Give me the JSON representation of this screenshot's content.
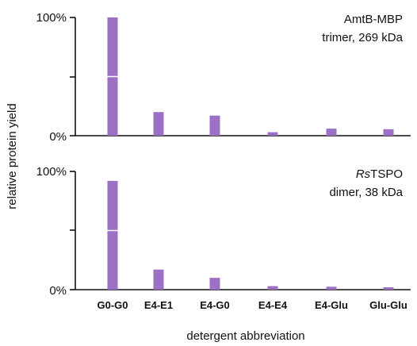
{
  "chart_data": {
    "type": "bar",
    "ylabel": "relative protein yield",
    "xlabel": "detergent abbreviation",
    "categories": [
      "G0-G0",
      "E4-E1",
      "E4-G0",
      "E4-E4",
      "E4-Glu",
      "Glu-Glu"
    ],
    "bar_color": "#9c70c4",
    "panels": [
      {
        "annotation": [
          "AmtB-MBP",
          "trimer, 269 kDa"
        ],
        "ylim": [
          0,
          100
        ],
        "ytick_labels": [
          "100%",
          "0%"
        ],
        "values": [
          100,
          20,
          17,
          3,
          6,
          5.5
        ],
        "marker_line": 50
      },
      {
        "annotation_italic": "Rs",
        "annotation_rest": "TSPO",
        "annotation_line2": "dimer, 38 kDa",
        "ylim": [
          0,
          100
        ],
        "ytick_labels": [
          "100%",
          "0%"
        ],
        "values": [
          92,
          17,
          10,
          3,
          2.5,
          2
        ],
        "marker_line": 50
      }
    ]
  }
}
